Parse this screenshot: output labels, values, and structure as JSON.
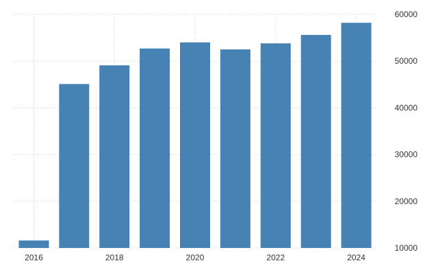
{
  "colors": {
    "bar": "#4682b4",
    "grid": "#cfcfcf",
    "text": "#333333",
    "background": "#ffffff"
  },
  "chart_data": {
    "type": "bar",
    "title": "",
    "xlabel": "",
    "ylabel": "",
    "categories": [
      "2016",
      "2017",
      "2018",
      "2019",
      "2020",
      "2021",
      "2022",
      "2023",
      "2024"
    ],
    "values": [
      11600,
      45100,
      49100,
      52700,
      54000,
      52500,
      53800,
      55600,
      58200
    ],
    "ylim": [
      10000,
      60000
    ],
    "y_ticks": [
      "10000",
      "20000",
      "30000",
      "40000",
      "50000",
      "60000"
    ],
    "x_tick_labels": [
      "2016",
      "2018",
      "2020",
      "2022",
      "2024"
    ],
    "y_axis_position": "right",
    "grid": true,
    "legend": "none"
  }
}
